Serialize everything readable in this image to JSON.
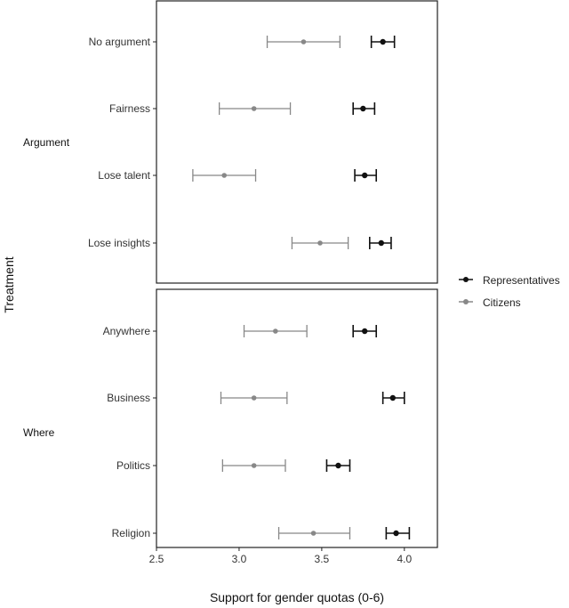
{
  "chart_data": {
    "type": "scatter",
    "subtype": "dot-whisker (point estimates with confidence intervals), faceted",
    "title": "",
    "xlabel": "Support for gender quotas (0-6)",
    "ylabel": "Treatment",
    "xlim": [
      2.5,
      4.2
    ],
    "xticks": [
      2.5,
      3.0,
      3.5,
      4.0
    ],
    "xtick_labels": [
      "2.5",
      "3.0",
      "3.5",
      "4.0"
    ],
    "grid": false,
    "legend": {
      "position": "right",
      "entries": [
        {
          "name": "Representatives",
          "color": "#111111"
        },
        {
          "name": "Citizens",
          "color": "#888888"
        }
      ]
    },
    "panels": [
      {
        "name": "Argument",
        "categories": [
          "No argument",
          "Fairness",
          "Lose talent",
          "Lose insights"
        ],
        "series": [
          {
            "name": "Representatives",
            "color": "#111111",
            "values": [
              3.87,
              3.75,
              3.76,
              3.86
            ],
            "ci_low": [
              3.8,
              3.69,
              3.7,
              3.79
            ],
            "ci_high": [
              3.94,
              3.82,
              3.83,
              3.92
            ]
          },
          {
            "name": "Citizens",
            "color": "#888888",
            "values": [
              3.39,
              3.09,
              2.91,
              3.49
            ],
            "ci_low": [
              3.17,
              2.88,
              2.72,
              3.32
            ],
            "ci_high": [
              3.61,
              3.31,
              3.1,
              3.66
            ]
          }
        ]
      },
      {
        "name": "Where",
        "categories": [
          "Anywhere",
          "Business",
          "Politics",
          "Religion"
        ],
        "series": [
          {
            "name": "Representatives",
            "color": "#111111",
            "values": [
              3.76,
              3.93,
              3.6,
              3.95
            ],
            "ci_low": [
              3.69,
              3.87,
              3.53,
              3.89
            ],
            "ci_high": [
              3.83,
              4.0,
              3.67,
              4.03
            ]
          },
          {
            "name": "Citizens",
            "color": "#888888",
            "values": [
              3.22,
              3.09,
              3.09,
              3.45
            ],
            "ci_low": [
              3.03,
              2.89,
              2.9,
              3.24
            ],
            "ci_high": [
              3.41,
              3.29,
              3.28,
              3.67
            ]
          }
        ]
      }
    ]
  }
}
